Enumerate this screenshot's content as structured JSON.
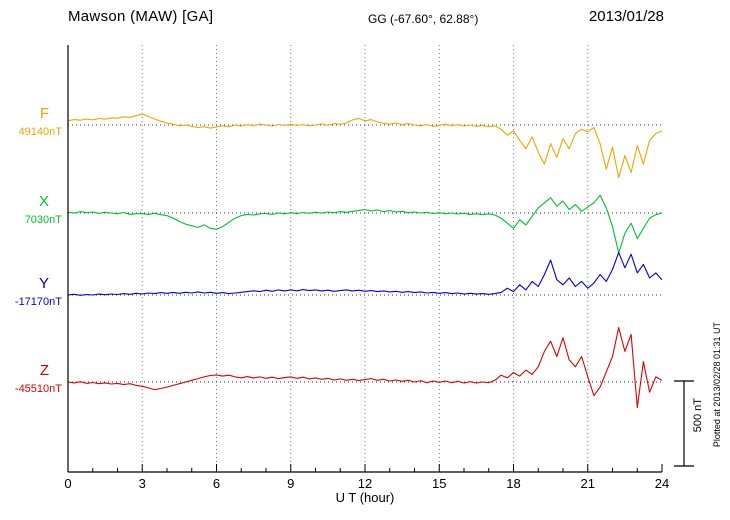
{
  "header": {
    "station": "Mawson (MAW)  [GA]",
    "coords": "GG (-67.60°,  62.88°)",
    "date": "2013/01/28"
  },
  "footer": {
    "xlabel": "U T (hour)"
  },
  "watermark": "Plotted at 2013/02/28 01:31 UT",
  "chart_data": {
    "type": "line",
    "title": "Mawson (MAW) [GA] magnetogram 2013/01/28",
    "xlabel": "U T (hour)",
    "ylabel": "",
    "x_range_hours": [
      0,
      24
    ],
    "x_ticks": [
      0,
      3,
      6,
      9,
      12,
      15,
      18,
      21,
      24
    ],
    "x_step_hours": 0.25,
    "grid": "dotted-vertical-every-3h",
    "scale_bar_nT": 500,
    "scale_bar_label": "500 nT",
    "series": [
      {
        "name": "F",
        "baseline_label": "49140nT",
        "baseline_nT": 49140,
        "color": "#efa500",
        "offsets_nT": [
          25,
          32,
          28,
          35,
          30,
          38,
          34,
          42,
          40,
          48,
          45,
          55,
          65,
          50,
          35,
          22,
          12,
          5,
          -5,
          0,
          -8,
          -15,
          -10,
          -18,
          -12,
          -5,
          -10,
          0,
          -6,
          2,
          -4,
          5,
          0,
          -6,
          3,
          -2,
          4,
          -3,
          2,
          -5,
          0,
          6,
          -2,
          8,
          4,
          12,
          30,
          38,
          25,
          32,
          18,
          10,
          5,
          12,
          2,
          8,
          0,
          -5,
          3,
          -8,
          -2,
          5,
          -4,
          2,
          -6,
          0,
          -8,
          -3,
          -10,
          -5,
          -25,
          -60,
          -35,
          -90,
          -140,
          -70,
          -160,
          -230,
          -110,
          -190,
          -80,
          -140,
          -50,
          -25,
          -40,
          -15,
          -110,
          -260,
          -130,
          -310,
          -180,
          -280,
          -120,
          -230,
          -90,
          -50,
          -35
        ]
      },
      {
        "name": "X",
        "baseline_label": "7030nT",
        "baseline_nT": 7030,
        "color": "#00bf30",
        "offsets_nT": [
          5,
          0,
          8,
          2,
          6,
          -2,
          4,
          0,
          -5,
          3,
          -8,
          -4,
          -4,
          -8,
          -2,
          -10,
          -15,
          -30,
          -50,
          -65,
          -75,
          -85,
          -70,
          -90,
          -95,
          -80,
          -55,
          -30,
          -15,
          -8,
          -12,
          -5,
          -3,
          -8,
          0,
          -5,
          2,
          -4,
          3,
          -2,
          5,
          0,
          6,
          2,
          8,
          4,
          10,
          15,
          20,
          12,
          18,
          8,
          14,
          6,
          10,
          2,
          6,
          0,
          4,
          -3,
          2,
          -5,
          0,
          -6,
          -2,
          -8,
          -4,
          -10,
          -5,
          -12,
          -30,
          -60,
          -90,
          -40,
          -70,
          -20,
          30,
          60,
          90,
          40,
          70,
          20,
          50,
          10,
          35,
          60,
          105,
          30,
          -80,
          -235,
          -120,
          -60,
          -150,
          -90,
          -30,
          -10,
          0
        ]
      },
      {
        "name": "Y",
        "baseline_label": "-17170nT",
        "baseline_nT": -17170,
        "color": "#0000dd",
        "offsets_nT": [
          0,
          4,
          -2,
          3,
          0,
          5,
          2,
          6,
          3,
          8,
          4,
          10,
          6,
          12,
          8,
          14,
          10,
          15,
          10,
          16,
          12,
          18,
          12,
          16,
          10,
          14,
          8,
          12,
          16,
          20,
          25,
          20,
          28,
          22,
          30,
          24,
          30,
          25,
          32,
          26,
          30,
          24,
          28,
          22,
          26,
          30,
          24,
          28,
          22,
          26,
          20,
          24,
          18,
          22,
          16,
          20,
          14,
          18,
          12,
          15,
          10,
          14,
          8,
          12,
          6,
          10,
          5,
          8,
          4,
          8,
          15,
          40,
          20,
          60,
          30,
          80,
          50,
          120,
          205,
          90,
          60,
          100,
          50,
          80,
          40,
          70,
          120,
          80,
          150,
          250,
          160,
          240,
          130,
          180,
          100,
          130,
          90
        ]
      },
      {
        "name": "Z",
        "baseline_label": "-45510nT",
        "baseline_nT": -45510,
        "color": "#dd0000",
        "offsets_nT": [
          0,
          -5,
          2,
          -8,
          -3,
          -10,
          -5,
          -12,
          -8,
          -15,
          -10,
          -20,
          -25,
          -35,
          -45,
          -38,
          -30,
          -20,
          -10,
          0,
          10,
          20,
          30,
          38,
          42,
          35,
          40,
          30,
          25,
          32,
          24,
          30,
          22,
          28,
          20,
          26,
          30,
          22,
          28,
          18,
          24,
          16,
          22,
          12,
          18,
          10,
          16,
          8,
          14,
          20,
          10,
          16,
          6,
          12,
          4,
          10,
          0,
          8,
          -4,
          6,
          -2,
          6,
          -4,
          4,
          -6,
          2,
          -6,
          0,
          -4,
          10,
          40,
          25,
          55,
          35,
          70,
          45,
          90,
          180,
          240,
          150,
          260,
          130,
          90,
          150,
          30,
          -80,
          -30,
          60,
          150,
          320,
          180,
          280,
          -150,
          120,
          -60,
          30,
          10
        ]
      }
    ]
  }
}
